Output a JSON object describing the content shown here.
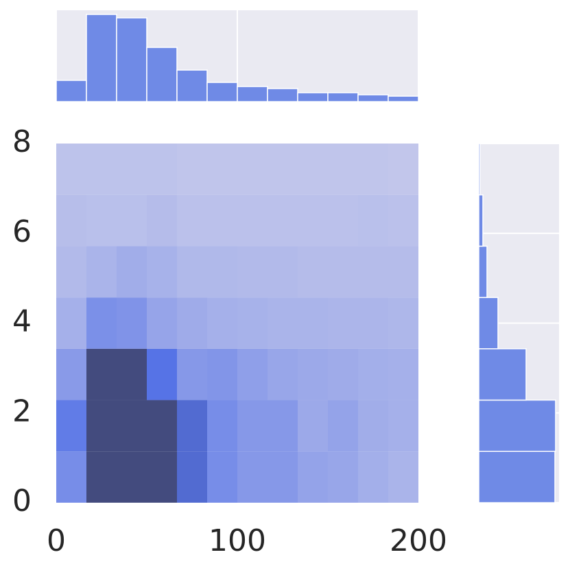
{
  "chart_data": [
    {
      "type": "heatmap",
      "xbins": [
        0,
        16.667,
        33.333,
        50,
        66.667,
        83.333,
        100,
        116.667,
        133.333,
        150,
        166.667,
        183.333,
        200
      ],
      "ybins": [
        0,
        1.143,
        2.286,
        3.429,
        4.571,
        5.714,
        6.857,
        8
      ],
      "counts": [
        [
          35,
          100,
          100,
          100,
          60,
          35,
          28,
          28,
          22,
          20,
          15,
          12
        ],
        [
          45,
          100,
          100,
          100,
          60,
          35,
          28,
          28,
          18,
          22,
          16,
          14
        ],
        [
          27,
          100,
          100,
          50,
          28,
          30,
          24,
          20,
          18,
          17,
          15,
          14
        ],
        [
          14,
          33,
          31,
          21,
          17,
          14,
          13,
          12,
          12,
          11,
          11,
          10
        ],
        [
          8,
          12,
          16,
          13,
          9,
          9,
          8,
          8,
          7,
          7,
          7,
          7
        ],
        [
          6,
          5,
          5,
          7,
          4,
          4,
          4,
          4,
          4,
          4,
          5,
          4
        ],
        [
          3,
          3,
          3,
          3,
          2,
          2,
          2,
          2,
          2,
          2,
          2,
          1
        ]
      ],
      "cmap": [
        "#c4c8eb",
        "#5673e6",
        "#434b7e"
      ],
      "clim": [
        0,
        100
      ],
      "xlim": [
        0,
        200
      ],
      "xticks": [
        0,
        100,
        200
      ],
      "ylim": [
        0,
        8
      ],
      "yticks": [
        0,
        2,
        4,
        6,
        8
      ]
    },
    {
      "type": "histogram",
      "orientation": "vertical",
      "bins": [
        0,
        16.667,
        33.333,
        50,
        66.667,
        83.333,
        100,
        116.667,
        133.333,
        150,
        166.667,
        183.333,
        200
      ],
      "values": [
        31,
        127,
        122,
        79,
        46,
        28,
        22,
        19,
        13,
        13,
        10,
        8
      ],
      "color": "#6f8ae6",
      "xlim": [
        0,
        200
      ],
      "ylim": [
        0,
        133
      ],
      "xgrid": [
        0,
        100,
        200
      ]
    },
    {
      "type": "histogram",
      "orientation": "horizontal",
      "bins": [
        0,
        1.143,
        2.286,
        3.429,
        4.571,
        5.714,
        6.857,
        8
      ],
      "values": [
        111,
        112,
        69,
        28,
        12,
        6,
        2
      ],
      "color": "#6f8ae6",
      "xlim": [
        0,
        117
      ],
      "ylim": [
        0,
        8
      ],
      "ygrid": [
        0,
        2,
        4,
        6,
        8
      ]
    }
  ]
}
